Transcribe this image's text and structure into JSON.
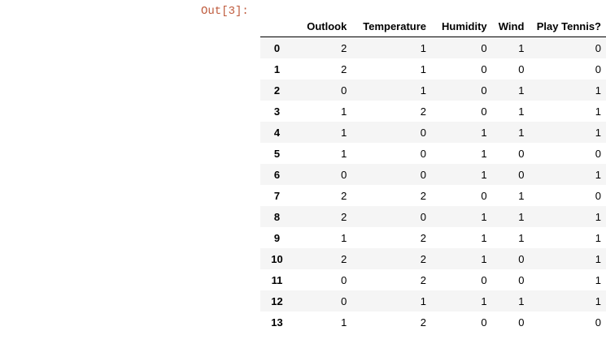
{
  "cell": {
    "prompt": "Out[3]:"
  },
  "dataframe": {
    "columns": [
      "Outlook",
      "Temperature",
      "Humidity",
      "Wind",
      "Play Tennis?"
    ],
    "rows": [
      {
        "index": "0",
        "values": [
          "2",
          "1",
          "0",
          "1",
          "0"
        ]
      },
      {
        "index": "1",
        "values": [
          "2",
          "1",
          "0",
          "0",
          "0"
        ]
      },
      {
        "index": "2",
        "values": [
          "0",
          "1",
          "0",
          "1",
          "1"
        ]
      },
      {
        "index": "3",
        "values": [
          "1",
          "2",
          "0",
          "1",
          "1"
        ]
      },
      {
        "index": "4",
        "values": [
          "1",
          "0",
          "1",
          "1",
          "1"
        ]
      },
      {
        "index": "5",
        "values": [
          "1",
          "0",
          "1",
          "0",
          "0"
        ]
      },
      {
        "index": "6",
        "values": [
          "0",
          "0",
          "1",
          "0",
          "1"
        ]
      },
      {
        "index": "7",
        "values": [
          "2",
          "2",
          "0",
          "1",
          "0"
        ]
      },
      {
        "index": "8",
        "values": [
          "2",
          "0",
          "1",
          "1",
          "1"
        ]
      },
      {
        "index": "9",
        "values": [
          "1",
          "2",
          "1",
          "1",
          "1"
        ]
      },
      {
        "index": "10",
        "values": [
          "2",
          "2",
          "1",
          "0",
          "1"
        ]
      },
      {
        "index": "11",
        "values": [
          "0",
          "2",
          "0",
          "0",
          "1"
        ]
      },
      {
        "index": "12",
        "values": [
          "0",
          "1",
          "1",
          "1",
          "1"
        ]
      },
      {
        "index": "13",
        "values": [
          "1",
          "2",
          "0",
          "0",
          "0"
        ]
      }
    ]
  }
}
